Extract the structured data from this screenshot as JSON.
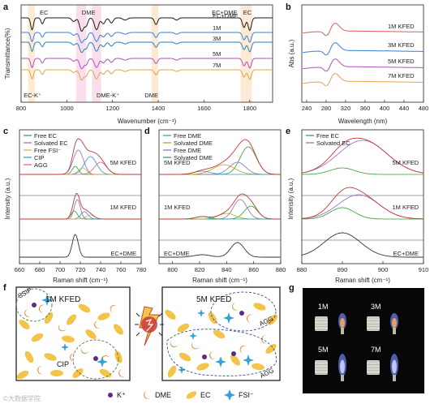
{
  "panels": {
    "a": "a",
    "b": "b",
    "c": "c",
    "d": "d",
    "e": "e",
    "f": "f",
    "g": "g"
  },
  "chart_data": [
    {
      "id": "a",
      "type": "line",
      "xlabel": "Wavenumber (cm⁻¹)",
      "ylabel": "Transmittance(%)",
      "xlim": [
        800,
        1900
      ],
      "xticks": [
        800,
        1000,
        1200,
        1400,
        1600,
        1800
      ],
      "series": [
        {
          "name": "EC+DME",
          "color": "#1a1a1a",
          "offset": 0.0
        },
        {
          "name": "1M",
          "color": "#3a7fd5",
          "offset": 1.0
        },
        {
          "name": "3M",
          "color": "#2c7fb8",
          "offset": 2.0
        },
        {
          "name": "5M",
          "color": "#b24ec4",
          "offset": 3.0
        },
        {
          "name": "7M",
          "color": "#e6a24a",
          "offset": 4.0
        }
      ],
      "peaks": [
        {
          "x": 848,
          "d": 1.6,
          "w": 6
        },
        {
          "x": 893,
          "d": 0.8,
          "w": 6
        },
        {
          "x": 1030,
          "d": 0.5,
          "w": 8
        },
        {
          "x": 1065,
          "d": 1.8,
          "w": 9
        },
        {
          "x": 1085,
          "d": 1.0,
          "w": 7
        },
        {
          "x": 1130,
          "d": 1.6,
          "w": 9
        },
        {
          "x": 1160,
          "d": 0.8,
          "w": 8
        },
        {
          "x": 1195,
          "d": 0.7,
          "w": 8
        },
        {
          "x": 1255,
          "d": 0.3,
          "w": 10
        },
        {
          "x": 1390,
          "d": 0.9,
          "w": 7
        },
        {
          "x": 1480,
          "d": 0.3,
          "w": 8
        },
        {
          "x": 1775,
          "d": 1.3,
          "w": 7
        },
        {
          "x": 1800,
          "d": 1.7,
          "w": 7
        }
      ],
      "annotations": [
        {
          "text": "EC",
          "x": 900,
          "pos": "top"
        },
        {
          "text": "DME",
          "x": 1095,
          "pos": "top"
        },
        {
          "text": "EC+DME",
          "x": 1690,
          "pos": "top"
        },
        {
          "text": "EC",
          "x": 1790,
          "pos": "top"
        },
        {
          "text": "EC-K⁺",
          "x": 850,
          "pos": "bottom"
        },
        {
          "text": "DME-K⁺",
          "x": 1180,
          "pos": "bottom"
        },
        {
          "text": "DME",
          "x": 1370,
          "pos": "bottom"
        }
      ],
      "shaded": [
        [
          1040,
          1085
        ],
        [
          1110,
          1150
        ],
        [
          1370,
          1400
        ],
        [
          1760,
          1810
        ],
        [
          830,
          860
        ]
      ]
    },
    {
      "id": "b",
      "type": "line",
      "xlabel": "Wavelength (nm)",
      "ylabel": "Abs (a.u.)",
      "xlim": [
        230,
        480
      ],
      "xticks": [
        240,
        280,
        320,
        360,
        400,
        440,
        480
      ],
      "series": [
        {
          "name": "1M KFED",
          "color": "#e05a5a"
        },
        {
          "name": "3M KFED",
          "color": "#3a7fd5"
        },
        {
          "name": "5M KFED",
          "color": "#b24ec4"
        },
        {
          "name": "7M KFED",
          "color": "#e6a24a"
        }
      ]
    },
    {
      "id": "c",
      "type": "line",
      "xlabel": "Raman shift (cm⁻¹)",
      "ylabel": "Intensity (a.u.)",
      "xlim": [
        660,
        780
      ],
      "xticks": [
        660,
        680,
        700,
        720,
        740,
        760,
        780
      ],
      "legend": [
        {
          "name": "Free EC",
          "color": "#2ca02c"
        },
        {
          "name": "Solvated EC",
          "color": "#9467bd"
        },
        {
          "name": "Free FSI⁻",
          "color": "#e6a24a"
        },
        {
          "name": "CIP",
          "color": "#1f9bd8"
        },
        {
          "name": "AGG",
          "color": "#e05a8a"
        }
      ],
      "curves": [
        "5M KFED",
        "1M KFED",
        "EC+DME"
      ]
    },
    {
      "id": "d",
      "type": "line",
      "xlabel": "Raman shift (cm⁻¹)",
      "ylabel": "",
      "xlim": [
        790,
        880
      ],
      "xticks": [
        800,
        820,
        840,
        860,
        880
      ],
      "legend": [
        {
          "name": "Free DME",
          "color": "#1aa7b8"
        },
        {
          "name": "Solvated DME",
          "color": "#b5a21c"
        },
        {
          "name": "Free DME",
          "color": "#9467bd"
        },
        {
          "name": "Solvated DME",
          "color": "#2ca02c"
        }
      ],
      "curves": [
        "5M KFED",
        "1M KFED",
        "EC+DME"
      ]
    },
    {
      "id": "e",
      "type": "line",
      "xlabel": "Raman shift (cm⁻¹)",
      "ylabel": "Intensity (a.u.)",
      "xlim": [
        880,
        910
      ],
      "xticks": [
        880,
        890,
        900,
        910
      ],
      "legend": [
        {
          "name": "Free EC",
          "color": "#2ca02c"
        },
        {
          "name": "Solvated EC",
          "color": "#9467bd"
        }
      ],
      "curves": [
        "5M KFED",
        "1M KFED",
        "EC+DME"
      ]
    }
  ],
  "diagram": {
    "left_title": "1M KFED",
    "right_title": "5M KFED",
    "labels": [
      "SSIP",
      "CIP",
      "AGG",
      "AGG"
    ],
    "legend": [
      "K⁺",
      "DME",
      "EC",
      "FSI⁻"
    ],
    "colors": {
      "k": "#5b2a86",
      "dme": "#e27d2a",
      "ec": "#f2c44a",
      "fsi": "#3aa0d8"
    }
  },
  "photo": {
    "labels": [
      "1M",
      "3M",
      "5M",
      "7M"
    ]
  },
  "watermark": "©大数据学院"
}
